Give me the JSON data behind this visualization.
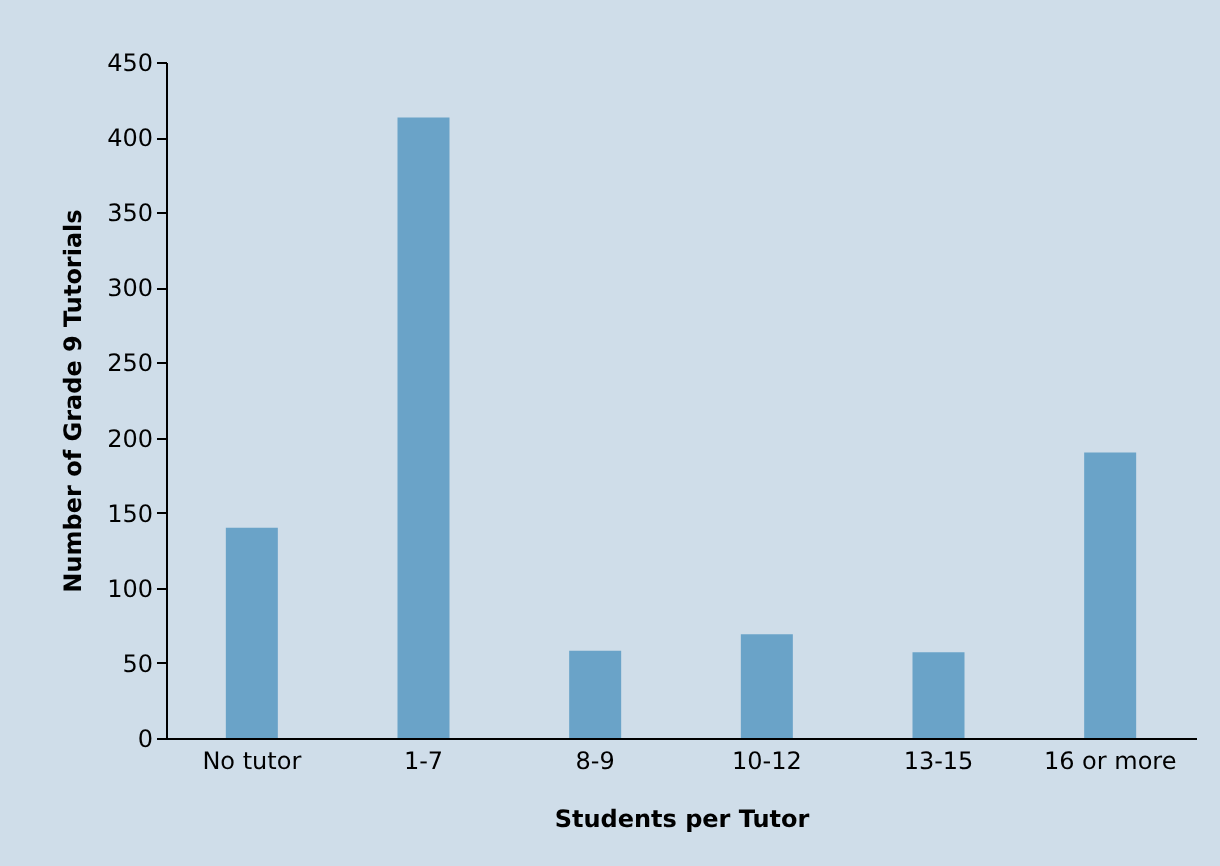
{
  "chart_data": {
    "type": "bar",
    "xlabel": "Students per Tutor",
    "ylabel": "Number of Grade 9 Tutorials",
    "categories": [
      "No tutor",
      "1-7",
      "8-9",
      "10-12",
      "13-15",
      "16 or more"
    ],
    "values": [
      140,
      413,
      58,
      69,
      57,
      190
    ],
    "color": "#6aa3c8",
    "ylim": [
      0,
      450
    ],
    "yticks": [
      0,
      50,
      100,
      150,
      200,
      250,
      300,
      350,
      400,
      450
    ],
    "grid": false
  }
}
